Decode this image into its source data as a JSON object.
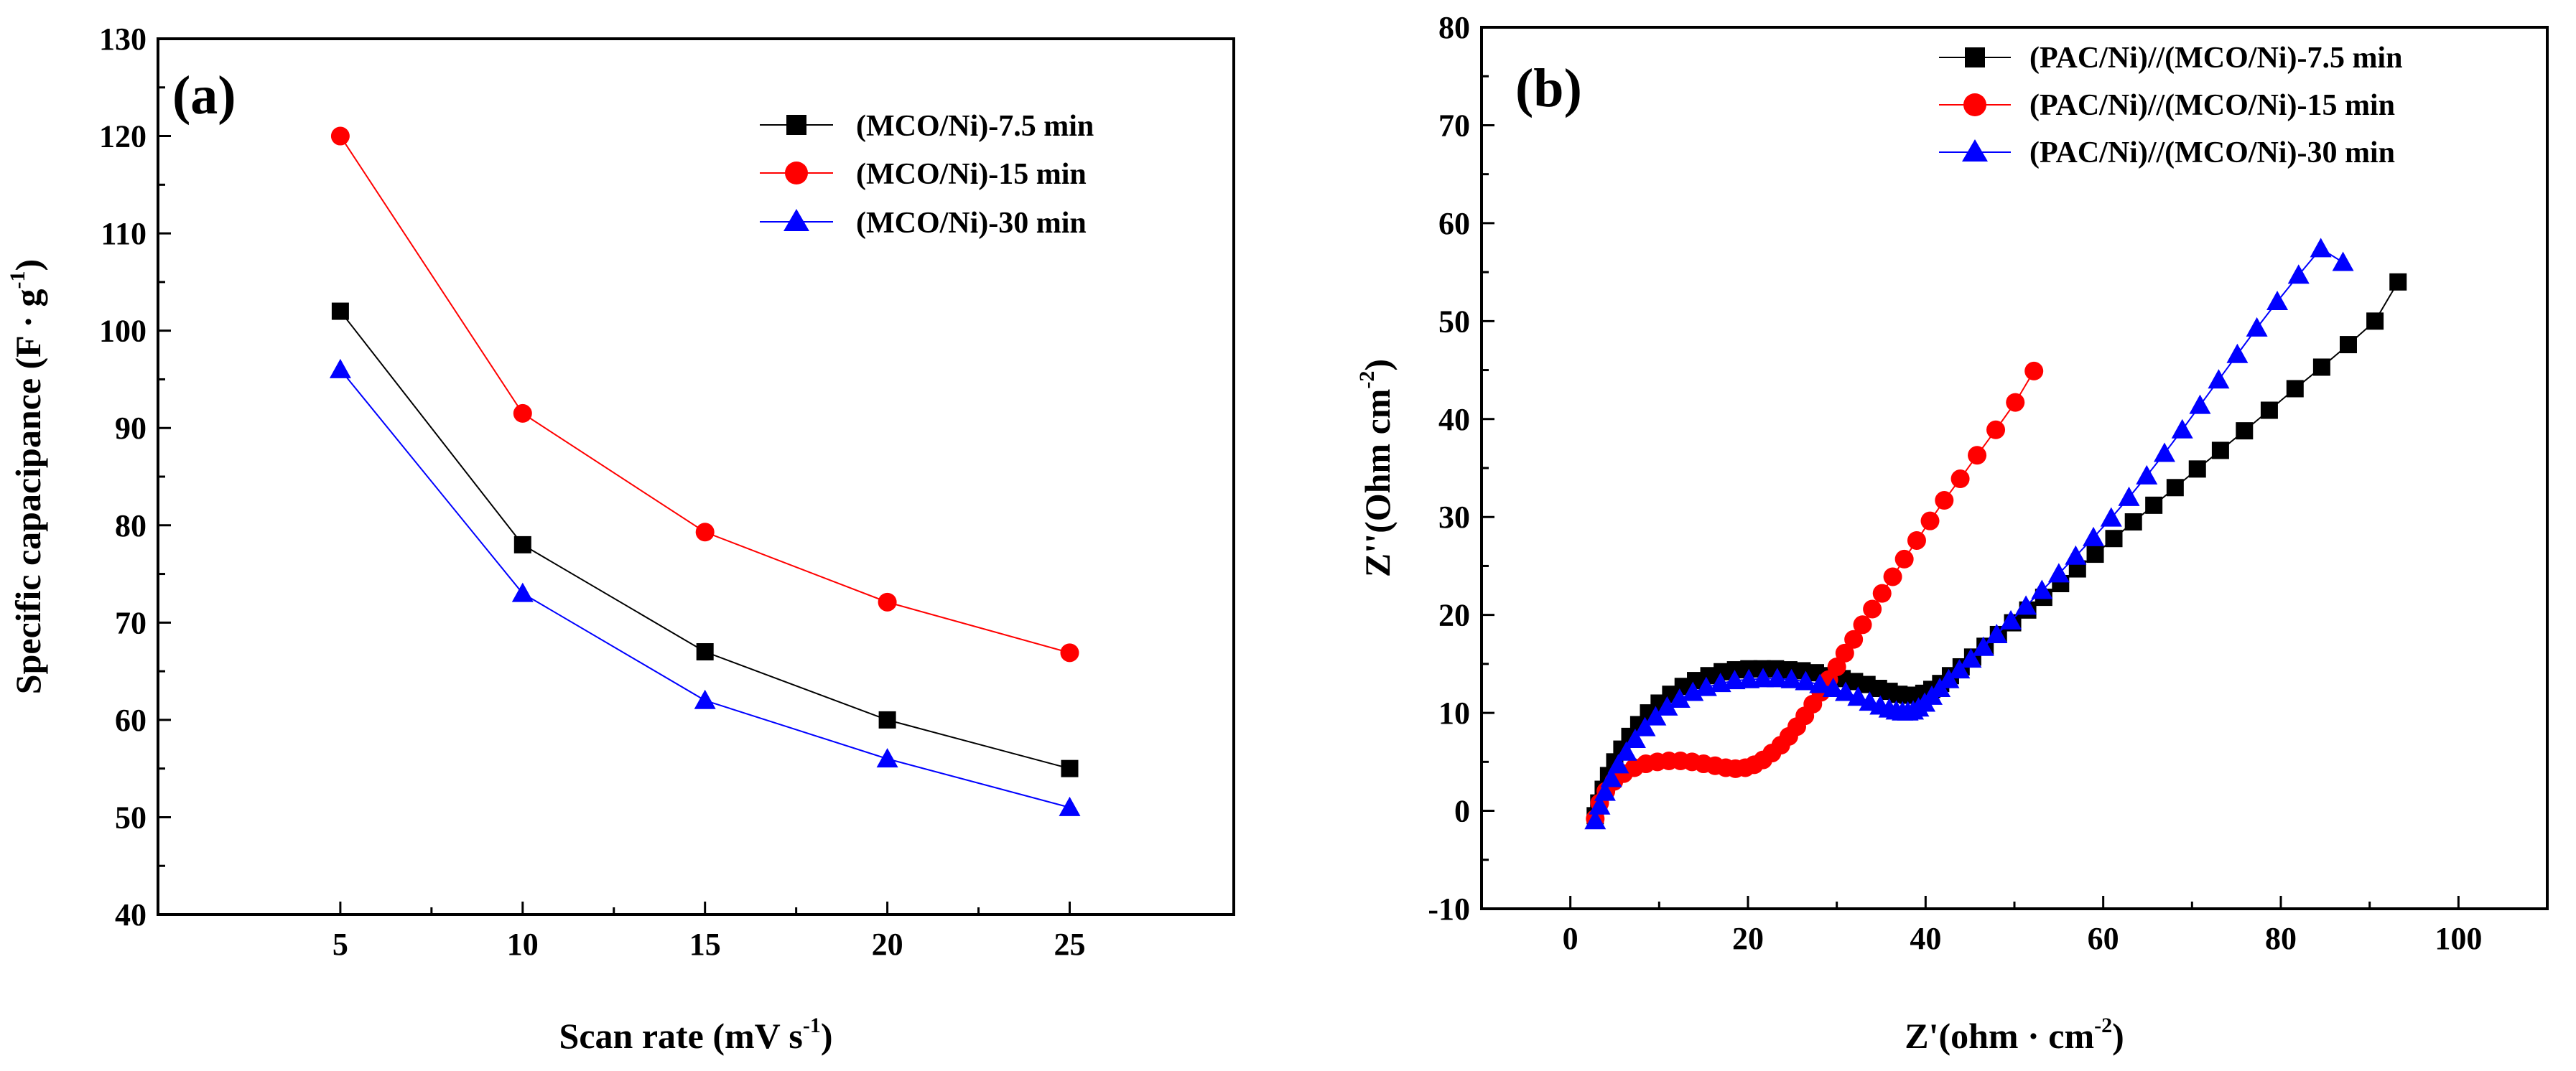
{
  "chart_data": [
    {
      "type": "line",
      "panel_label": "(a)",
      "xlabel": "Scan rate (mV s",
      "xlabel_sup": "-1",
      "xlabel_end": ")",
      "ylabel": "Specific capacipance (F · g",
      "ylabel_sup": "-1",
      "ylabel_end": ")",
      "xlim": [
        0,
        29.5
      ],
      "ylim": [
        40,
        130
      ],
      "xticks": [
        5,
        10,
        15,
        20,
        25
      ],
      "yticks": [
        40,
        50,
        60,
        70,
        80,
        90,
        100,
        110,
        120,
        130
      ],
      "legend_position": "top-right",
      "series": [
        {
          "name": "(MCO/Ni)-7.5 min",
          "color": "#000000",
          "marker": "square",
          "x": [
            5,
            10,
            15,
            20,
            25
          ],
          "y": [
            102,
            78,
            67,
            60,
            55
          ]
        },
        {
          "name": "(MCO/Ni)-15 min",
          "color": "#ff0000",
          "marker": "circle",
          "x": [
            5,
            10,
            15,
            20,
            25
          ],
          "y": [
            120,
            91.5,
            79.3,
            72.1,
            66.9
          ]
        },
        {
          "name": "(MCO/Ni)-30 min",
          "color": "#0000ff",
          "marker": "triangle",
          "x": [
            5,
            10,
            15,
            20,
            25
          ],
          "y": [
            96,
            73,
            62,
            56,
            51
          ]
        }
      ]
    },
    {
      "type": "scatter",
      "panel_label": "(b)",
      "xlabel": "Z'(ohm · cm",
      "xlabel_sup": "-2",
      "xlabel_end": ")",
      "ylabel": "Z''(Ohm cm",
      "ylabel_sup": "-2",
      "ylabel_end": ")",
      "xlim": [
        -10,
        110
      ],
      "ylim": [
        -10,
        80
      ],
      "xticks": [
        0,
        20,
        40,
        60,
        80,
        100
      ],
      "yticks": [
        -10,
        0,
        10,
        20,
        30,
        40,
        50,
        60,
        70,
        80
      ],
      "legend_position": "top-right",
      "series": [
        {
          "name": "(PAC/Ni)//(MCO/Ni)-7.5 min",
          "color": "#000000",
          "marker": "square",
          "x": [
            2.8,
            3.2,
            3.7,
            4.3,
            5,
            5.8,
            6.7,
            7.7,
            8.8,
            10,
            11.3,
            12.7,
            14.1,
            15.6,
            17.1,
            18.6,
            20.1,
            21.6,
            23.1,
            24.6,
            26.1,
            27.6,
            29.1,
            30.6,
            32,
            33.4,
            34.7,
            35.9,
            37,
            38,
            38.9,
            39.8,
            40.7,
            41.7,
            42.8,
            44,
            45.3,
            46.7,
            48.2,
            49.8,
            51.5,
            53.3,
            55.2,
            57.1,
            59.1,
            61.2,
            63.4,
            65.7,
            68.1,
            70.6,
            73.2,
            75.9,
            78.7,
            81.6,
            84.6,
            87.6,
            90.6,
            93.2
          ],
          "y": [
            -0.5,
            0.8,
            2.2,
            3.6,
            5,
            6.3,
            7.6,
            8.8,
            10,
            11,
            11.9,
            12.7,
            13.3,
            13.8,
            14.2,
            14.4,
            14.5,
            14.5,
            14.5,
            14.4,
            14.3,
            14.1,
            13.8,
            13.5,
            13.2,
            12.9,
            12.5,
            12.2,
            11.9,
            11.8,
            11.8,
            12,
            12.4,
            13,
            13.8,
            14.7,
            15.7,
            16.8,
            18,
            19.2,
            20.5,
            21.8,
            23.2,
            24.7,
            26.2,
            27.8,
            29.5,
            31.2,
            33,
            34.9,
            36.8,
            38.8,
            40.9,
            43.1,
            45.3,
            47.6,
            50,
            54
          ]
        },
        {
          "name": "(PAC/Ni)//(MCO/Ni)-15 min",
          "color": "#ff0000",
          "marker": "circle",
          "x": [
            2.8,
            3.3,
            4,
            4.9,
            6,
            7.2,
            8.5,
            9.8,
            11.1,
            12.4,
            13.7,
            15,
            16.3,
            17.5,
            18.6,
            19.7,
            20.7,
            21.7,
            22.7,
            23.7,
            24.6,
            25.5,
            26.4,
            27.3,
            28.2,
            29.1,
            30,
            30.9,
            31.9,
            32.9,
            34,
            35.1,
            36.3,
            37.6,
            39,
            40.5,
            42.1,
            43.9,
            45.8,
            47.9,
            50.1,
            52.2
          ],
          "y": [
            -0.8,
            0.8,
            2,
            3,
            3.8,
            4.4,
            4.8,
            5,
            5.1,
            5.1,
            5,
            4.8,
            4.6,
            4.4,
            4.3,
            4.4,
            4.7,
            5.2,
            5.9,
            6.7,
            7.6,
            8.6,
            9.7,
            10.9,
            12.1,
            13.4,
            14.7,
            16.1,
            17.5,
            19,
            20.6,
            22.2,
            23.9,
            25.7,
            27.6,
            29.6,
            31.7,
            33.9,
            36.3,
            38.9,
            41.7,
            44.9
          ]
        },
        {
          "name": "(PAC/Ni)//(MCO/Ni)-30 min",
          "color": "#0000ff",
          "marker": "triangle",
          "x": [
            2.8,
            3.3,
            3.9,
            4.6,
            5.4,
            6.3,
            7.3,
            8.4,
            9.6,
            10.9,
            12.3,
            13.8,
            15.3,
            16.9,
            18.5,
            20.1,
            21.7,
            23.3,
            24.9,
            26.5,
            28.1,
            29.6,
            31,
            32.4,
            33.7,
            34.9,
            35.9,
            36.7,
            37.4,
            38,
            38.6,
            39.2,
            39.9,
            40.7,
            41.6,
            42.6,
            43.8,
            45.1,
            46.5,
            48,
            49.6,
            51.3,
            53.1,
            55,
            56.9,
            58.9,
            60.9,
            62.9,
            64.9,
            66.9,
            68.9,
            70.9,
            73,
            75.1,
            77.3,
            79.6,
            82,
            84.5,
            87
          ],
          "y": [
            -1,
            0.5,
            1.9,
            3.3,
            4.7,
            6,
            7.3,
            8.5,
            9.6,
            10.6,
            11.4,
            12.1,
            12.6,
            13,
            13.3,
            13.4,
            13.5,
            13.5,
            13.4,
            13.2,
            12.9,
            12.5,
            12.1,
            11.6,
            11.1,
            10.7,
            10.4,
            10.2,
            10.1,
            10.1,
            10.2,
            10.5,
            11,
            11.7,
            12.5,
            13.4,
            14.4,
            15.5,
            16.7,
            18,
            19.4,
            20.9,
            22.5,
            24.2,
            26,
            27.9,
            29.9,
            32,
            34.2,
            36.5,
            38.9,
            41.4,
            44,
            46.6,
            49.3,
            52,
            54.7,
            57.4,
            56
          ]
        }
      ]
    }
  ]
}
